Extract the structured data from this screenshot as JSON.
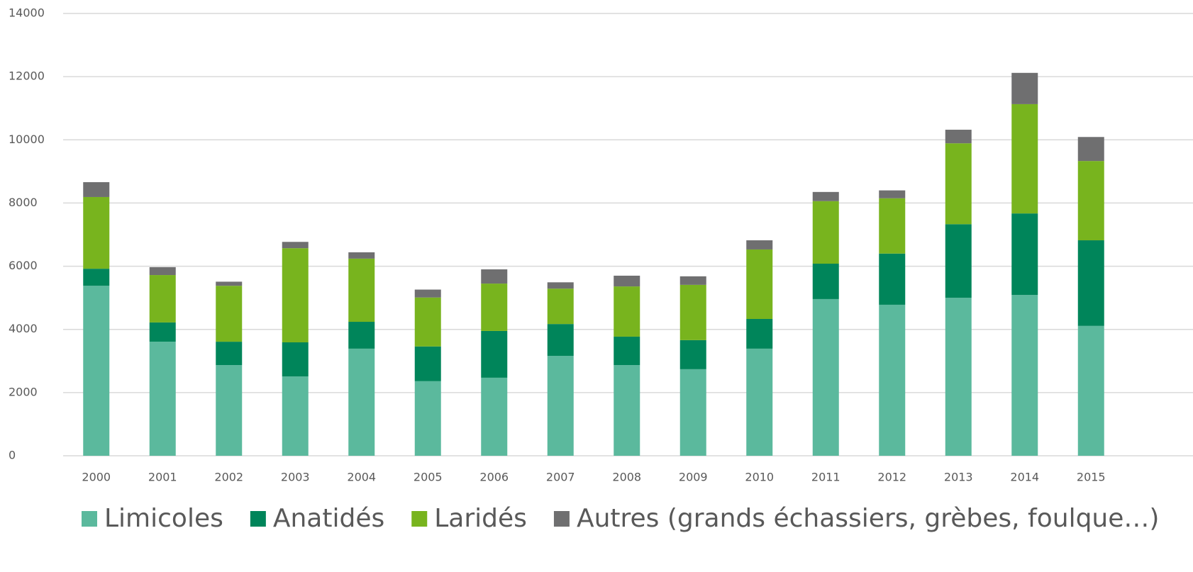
{
  "chart_data": {
    "type": "stacked_bar",
    "categories": [
      "2000",
      "2001",
      "2002",
      "2003",
      "2004",
      "2005",
      "2006",
      "2007",
      "2008",
      "2009",
      "2010",
      "2011",
      "2012",
      "2013",
      "2014",
      "2015"
    ],
    "series": [
      {
        "name": "Limicoles",
        "color": "#5bb99d",
        "values": [
          5380,
          3610,
          2870,
          2510,
          3390,
          2360,
          2470,
          3160,
          2870,
          2740,
          3390,
          4960,
          4780,
          5000,
          5090,
          4110
        ]
      },
      {
        "name": "Anatidés",
        "color": "#00855a",
        "values": [
          540,
          610,
          740,
          1080,
          850,
          1100,
          1480,
          1010,
          900,
          920,
          940,
          1120,
          1620,
          2330,
          2580,
          2710
        ]
      },
      {
        "name": "Laridés",
        "color": "#78b41e",
        "values": [
          2270,
          1500,
          1770,
          2980,
          2000,
          1550,
          1500,
          1120,
          1590,
          1750,
          2200,
          1980,
          1750,
          2560,
          3460,
          2510
        ]
      },
      {
        "name": "Autres (grands échassiers, grèbes, foulque…)",
        "color": "#6f6f70",
        "values": [
          470,
          250,
          130,
          200,
          200,
          250,
          450,
          200,
          340,
          270,
          290,
          290,
          250,
          430,
          990,
          760
        ]
      }
    ],
    "ylim": [
      0,
      14000
    ],
    "yticks": [
      0,
      2000,
      4000,
      6000,
      8000,
      10000,
      12000,
      14000
    ],
    "grid": true,
    "legend": "bottom"
  }
}
